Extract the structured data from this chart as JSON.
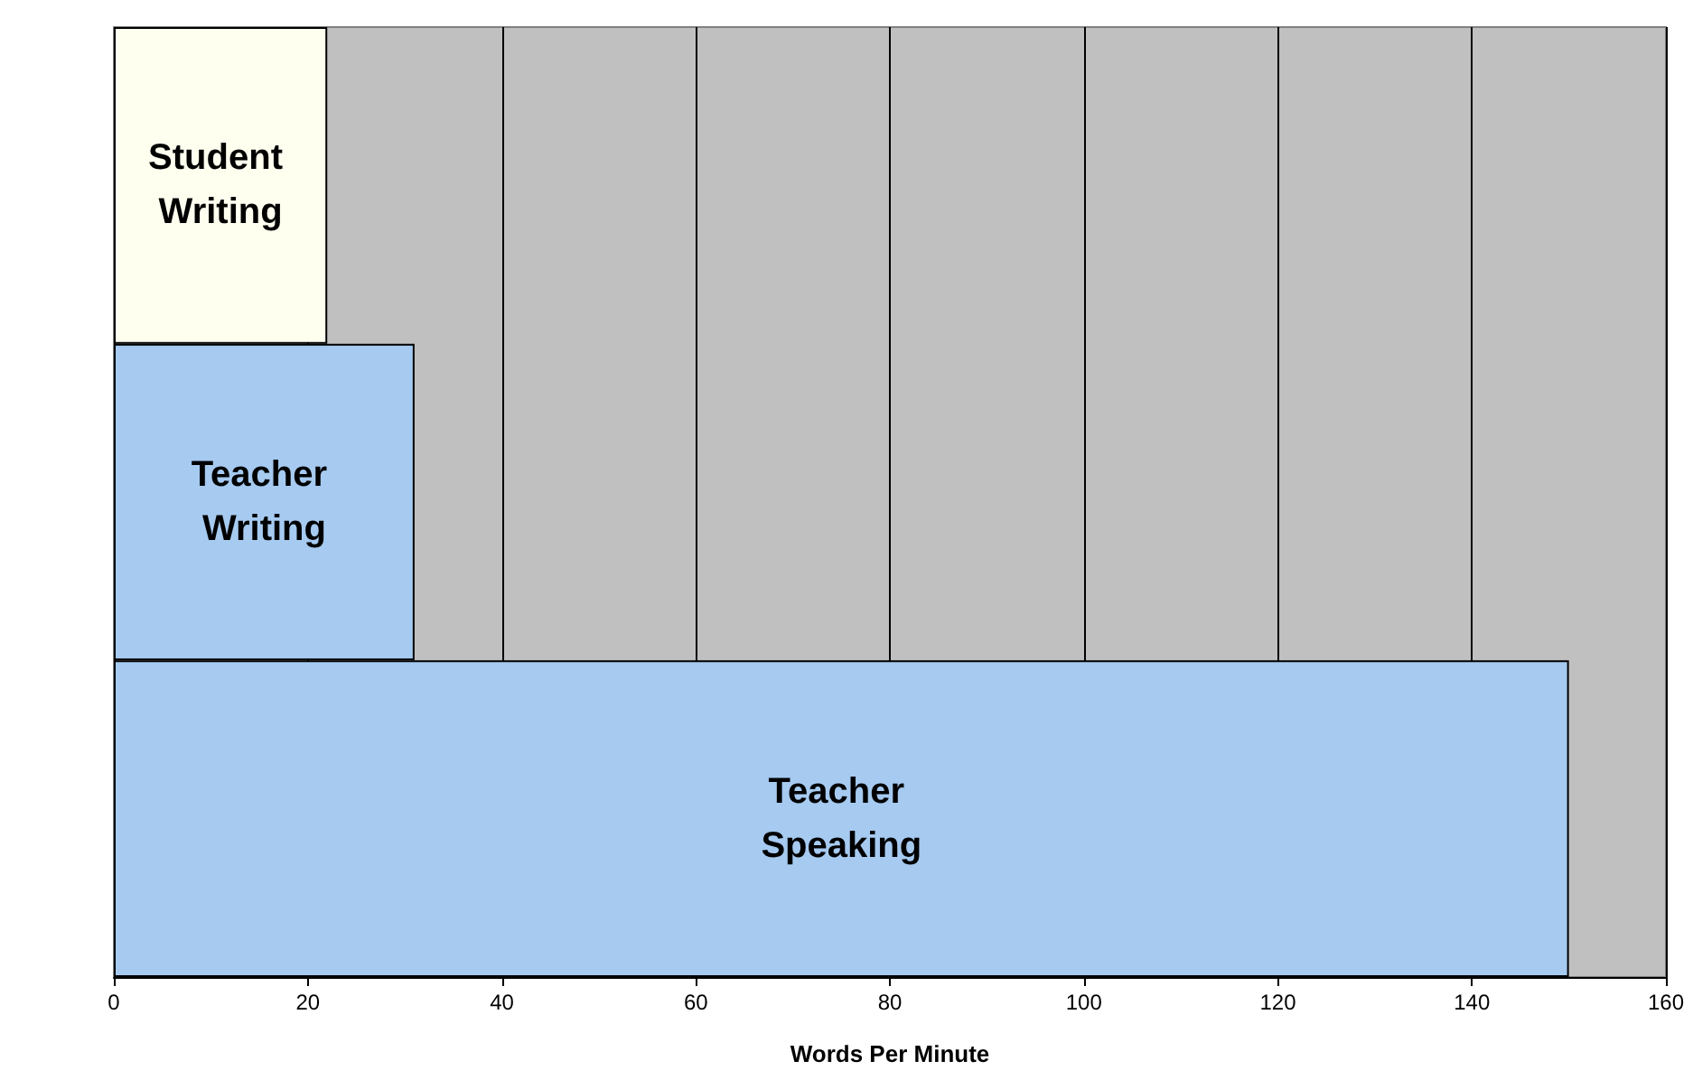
{
  "chart_data": {
    "type": "bar",
    "orientation": "horizontal",
    "xlabel": "Words Per Minute",
    "categories": [
      "Student Writing",
      "Teacher Writing",
      "Teacher Speaking"
    ],
    "values": [
      22,
      31,
      150
    ],
    "colors": [
      "#fffff0",
      "#a6caf0",
      "#a6caf0"
    ],
    "xlim": [
      0,
      160
    ],
    "xticks": [
      0,
      20,
      40,
      60,
      80,
      100,
      120,
      140,
      160
    ],
    "grid": "x",
    "tick_labels": "x"
  }
}
